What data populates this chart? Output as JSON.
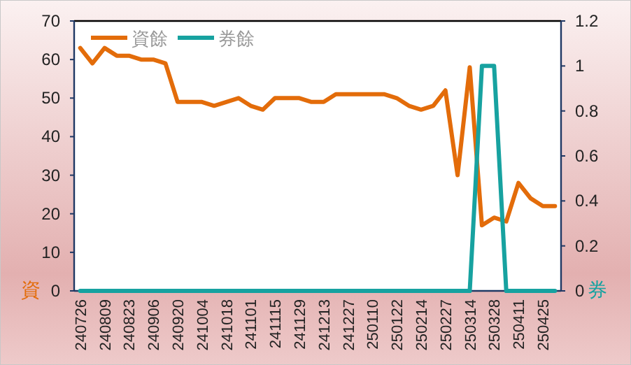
{
  "chart_data": {
    "type": "line",
    "categories": [
      "240726",
      null,
      "240809",
      null,
      "240823",
      null,
      "240906",
      null,
      "240920",
      null,
      "241004",
      null,
      "241018",
      null,
      "241101",
      null,
      "241115",
      null,
      "241129",
      null,
      "241213",
      null,
      "241227",
      null,
      "250110",
      null,
      "250122",
      null,
      "250214",
      null,
      "250227",
      null,
      "250314",
      null,
      "250328",
      null,
      "250411",
      null,
      "250425",
      null
    ],
    "series": [
      {
        "name": "資餘",
        "color": "#e36c0a",
        "values": [
          63,
          59,
          63,
          61,
          61,
          60,
          60,
          59,
          49,
          49,
          49,
          48,
          49,
          50,
          48,
          47,
          50,
          50,
          50,
          49,
          49,
          51,
          51,
          51,
          51,
          51,
          50,
          48,
          47,
          48,
          52,
          30,
          58,
          17,
          19,
          18,
          28,
          24,
          22,
          22
        ]
      },
      {
        "name": "券餘",
        "color": "#17a2a0",
        "axis": "y2",
        "values": [
          0,
          0,
          0,
          0,
          0,
          0,
          0,
          0,
          0,
          0,
          0,
          0,
          0,
          0,
          0,
          0,
          0,
          0,
          0,
          0,
          0,
          0,
          0,
          0,
          0,
          0,
          0,
          0,
          0,
          0,
          0,
          0,
          0,
          1,
          1,
          0,
          0,
          0,
          0,
          0
        ]
      }
    ],
    "ylim": [
      0,
      70
    ],
    "yticks": [
      0,
      10,
      20,
      30,
      40,
      50,
      60,
      70
    ],
    "y2lim": [
      0,
      1.2
    ],
    "y2ticks": [
      0,
      0.2,
      0.4,
      0.6,
      0.8,
      1,
      1.2
    ],
    "ylabel": "資",
    "y2label": "券",
    "legend": "top left",
    "grid": false,
    "marker": "none",
    "line_style": "solid"
  }
}
